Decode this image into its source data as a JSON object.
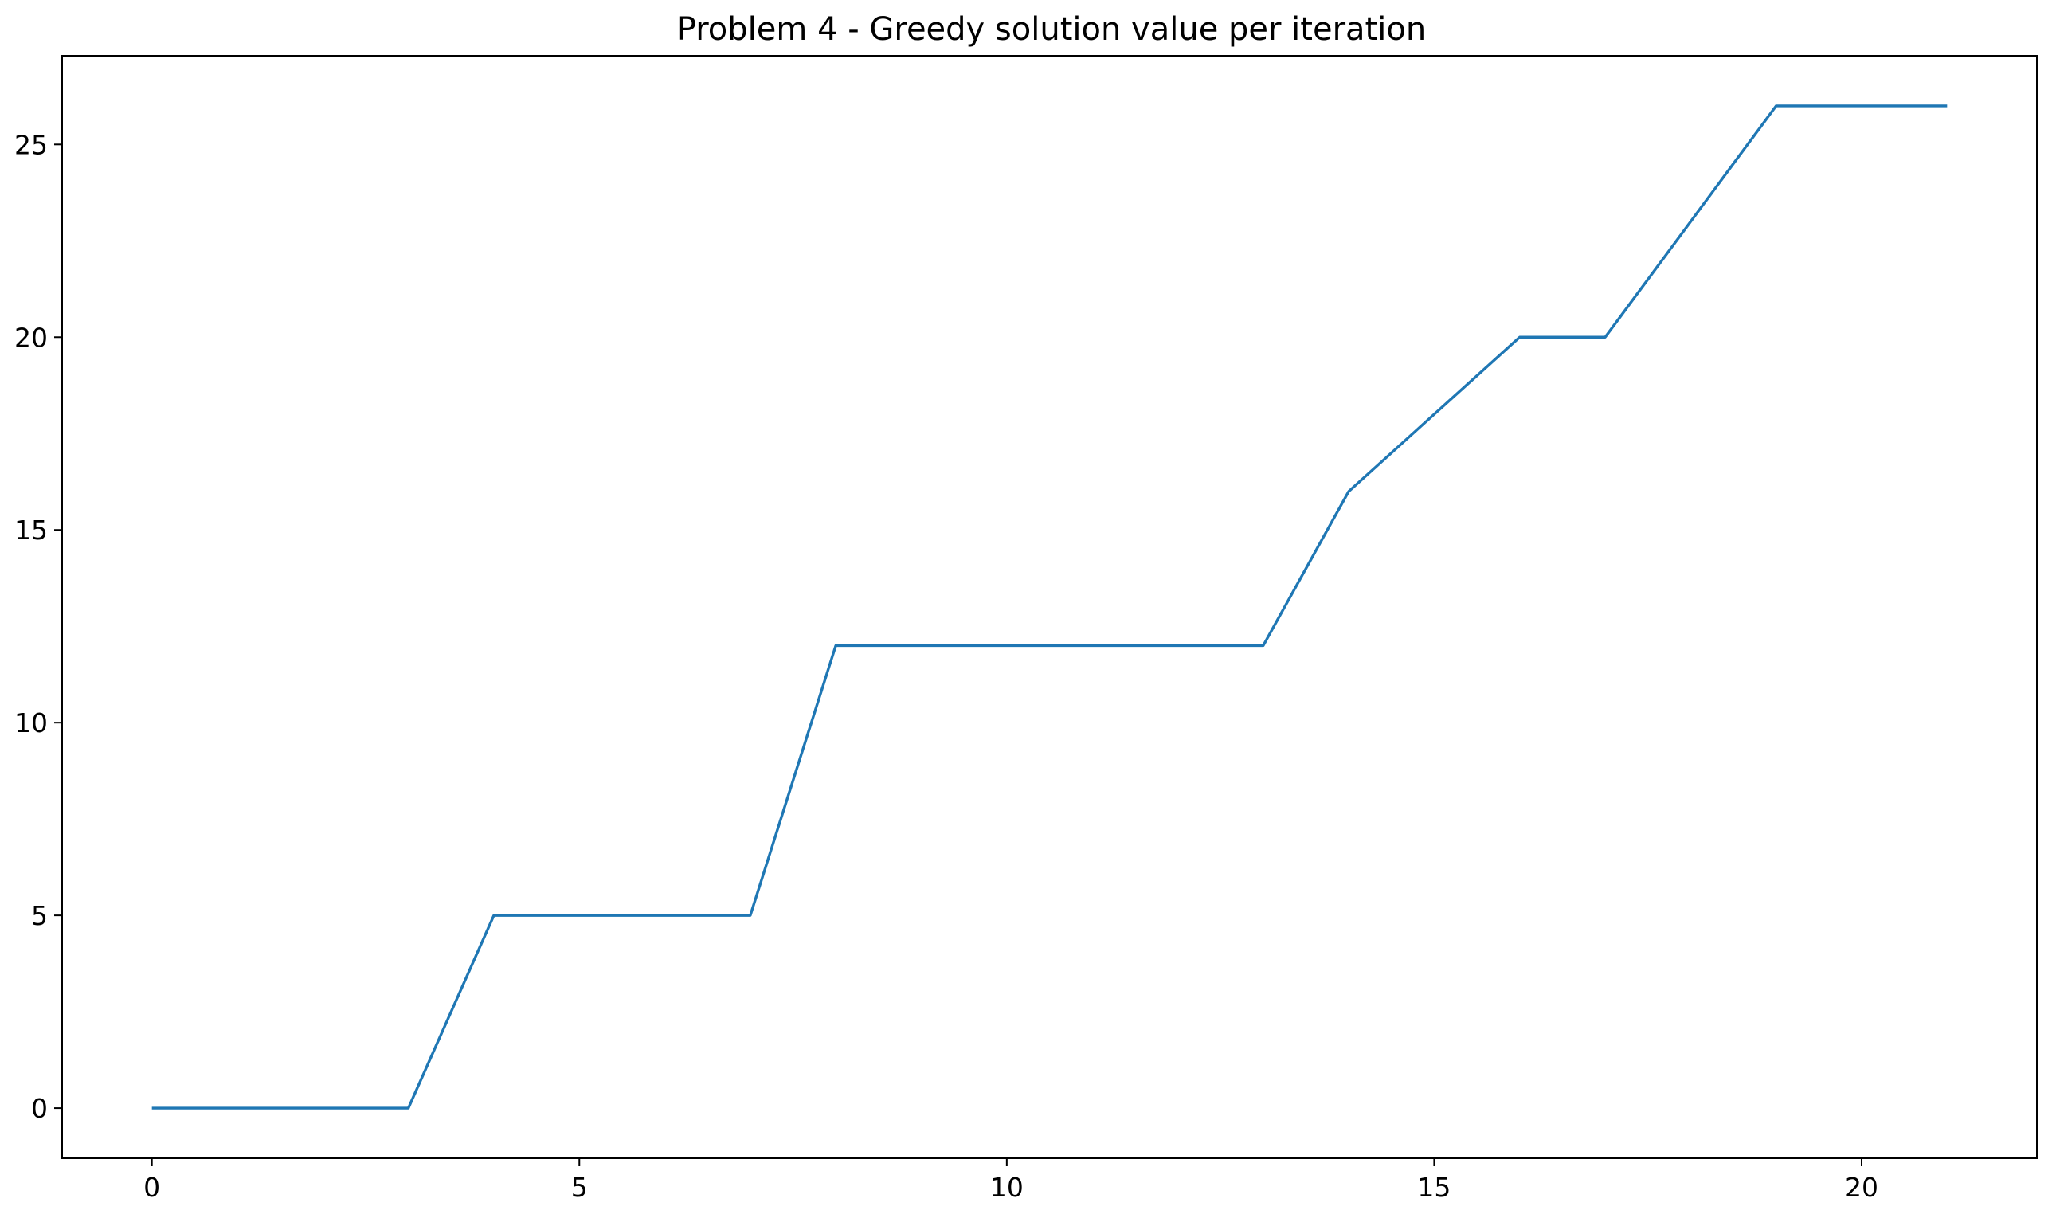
{
  "chart_data": {
    "type": "line",
    "title": "Problem 4 - Greedy solution value per iteration",
    "xlabel": "",
    "ylabel": "",
    "xlim": [
      -1.05,
      22.05
    ],
    "ylim": [
      -1.3,
      27.3
    ],
    "xticks": [
      0,
      5,
      10,
      15,
      20
    ],
    "yticks": [
      0,
      5,
      10,
      15,
      20,
      25
    ],
    "grid": false,
    "series": [
      {
        "color": "#1f77b4",
        "x": [
          0,
          1,
          2,
          3,
          4,
          5,
          6,
          7,
          8,
          9,
          10,
          11,
          12,
          13,
          14,
          15,
          16,
          17,
          18,
          19,
          20,
          21
        ],
        "y": [
          0,
          0,
          0,
          0,
          5,
          5,
          5,
          5,
          12,
          12,
          12,
          12,
          12,
          12,
          16,
          18,
          20,
          20,
          23,
          26,
          26,
          26
        ]
      }
    ]
  }
}
